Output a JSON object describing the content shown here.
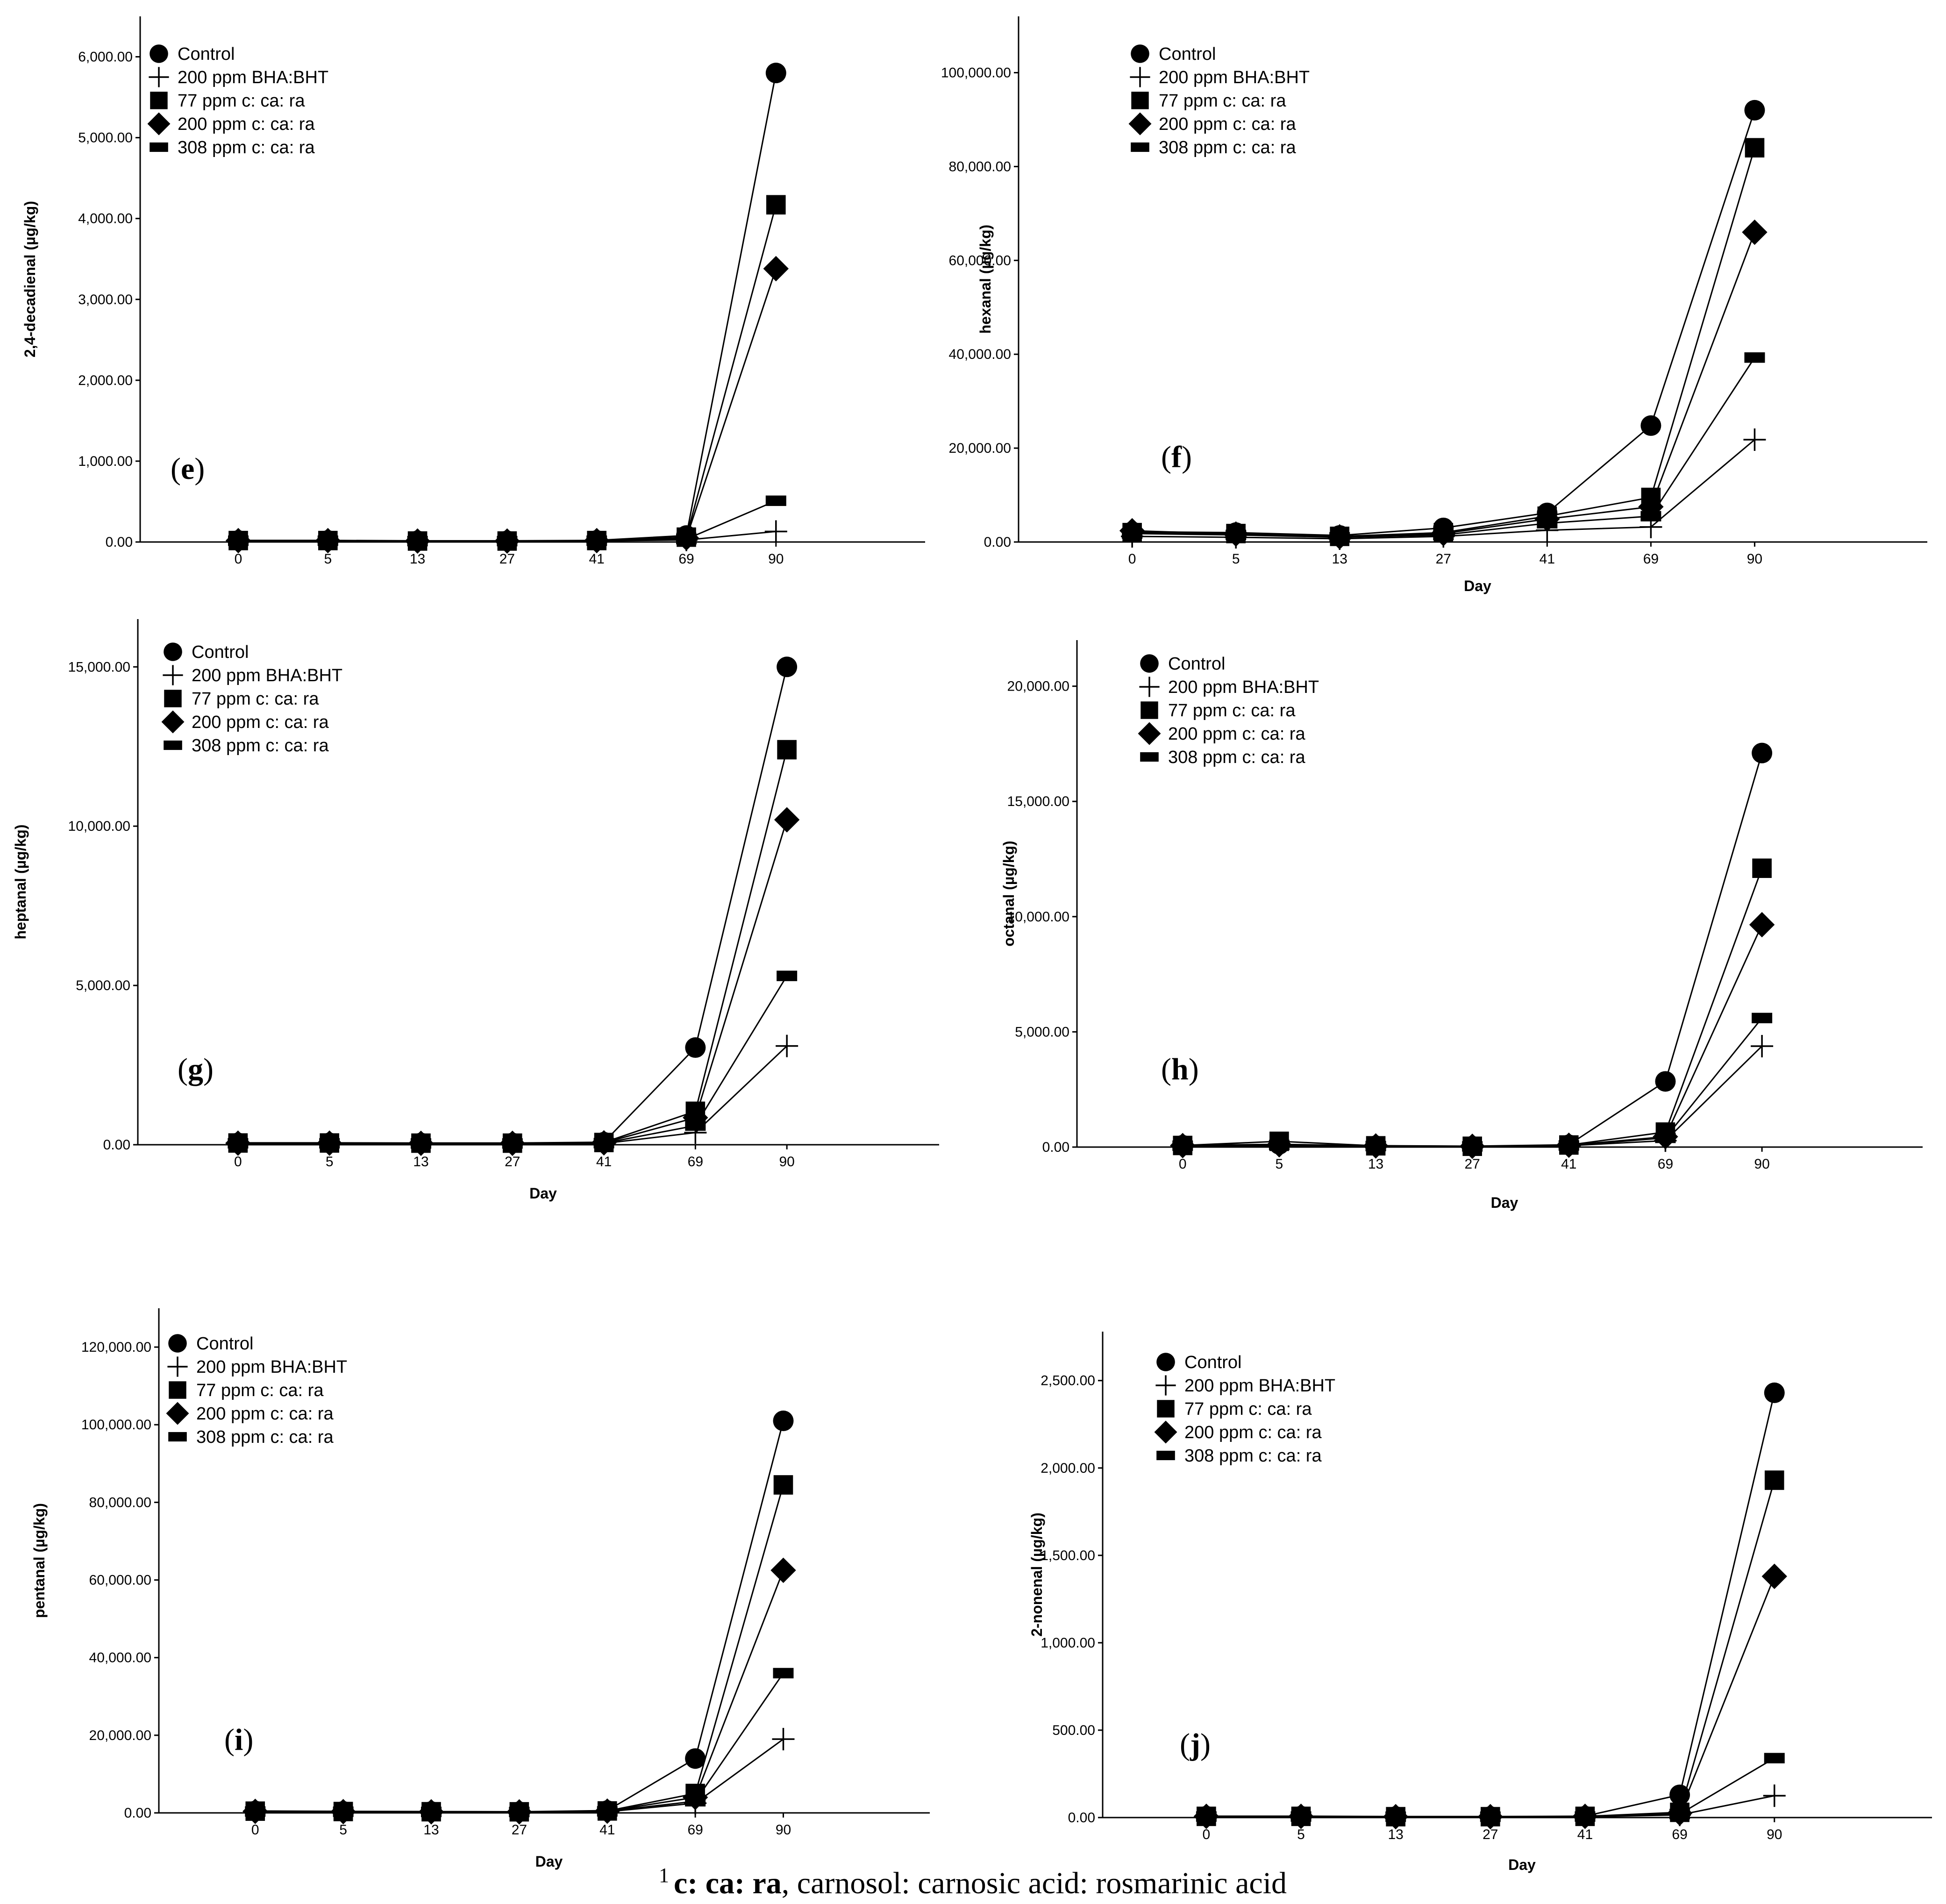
{
  "chart_data": [
    {
      "type": "line",
      "panel_label": "(e)",
      "ylabel": "2,4-decadienal (µg/kg)",
      "xlabel": "",
      "categories": [
        "0",
        "5",
        "13",
        "27",
        "41",
        "69",
        "90"
      ],
      "ylim": [
        0,
        6500
      ],
      "yticks": [
        0,
        1000,
        2000,
        3000,
        4000,
        5000,
        6000
      ],
      "ytick_labels": [
        "0.00",
        "1,000.00",
        "2,000.00",
        "3,000.00",
        "4,000.00",
        "5,000.00",
        "6,000.00"
      ],
      "series": [
        {
          "name": "Control",
          "values": [
            20,
            20,
            15,
            15,
            20,
            80,
            5800
          ]
        },
        {
          "name": "200 ppm BHA:BHT",
          "values": [
            15,
            15,
            10,
            10,
            15,
            25,
            130
          ]
        },
        {
          "name": "77 ppm c: ca: ra",
          "values": [
            18,
            18,
            12,
            12,
            18,
            60,
            4170
          ]
        },
        {
          "name": "200 ppm c: ca: ra",
          "values": [
            17,
            17,
            12,
            12,
            17,
            50,
            3380
          ]
        },
        {
          "name": "308 ppm c: ca: ra",
          "values": [
            16,
            16,
            11,
            11,
            16,
            35,
            510
          ]
        }
      ]
    },
    {
      "type": "line",
      "panel_label": "(f)",
      "ylabel": "hexanal (µg/kg)",
      "xlabel": "Day",
      "categories": [
        "0",
        "5",
        "13",
        "27",
        "41",
        "69",
        "90"
      ],
      "ylim": [
        0,
        112000
      ],
      "yticks": [
        0,
        20000,
        40000,
        60000,
        80000,
        100000
      ],
      "ytick_labels": [
        "0.00",
        "20,000.00",
        "40,000.00",
        "60,000.00",
        "80,000.00",
        "100,000.00"
      ],
      "series": [
        {
          "name": "Control",
          "values": [
            2200,
            2000,
            1400,
            3000,
            6200,
            24800,
            92000
          ]
        },
        {
          "name": "200 ppm BHA:BHT",
          "values": [
            1200,
            1000,
            700,
            1200,
            2500,
            3200,
            21800
          ]
        },
        {
          "name": "77 ppm c: ca: ra",
          "values": [
            2000,
            1800,
            1200,
            2000,
            5500,
            9500,
            84000
          ]
        },
        {
          "name": "200 ppm c: ca: ra",
          "values": [
            2400,
            1700,
            1100,
            1800,
            4900,
            7500,
            66000
          ]
        },
        {
          "name": "308 ppm c: ca: ra",
          "values": [
            1800,
            1500,
            1000,
            1500,
            4000,
            5500,
            39300
          ]
        }
      ]
    },
    {
      "type": "line",
      "panel_label": "(g)",
      "ylabel": "heptanal (µg/kg)",
      "xlabel": "Day",
      "categories": [
        "0",
        "5",
        "13",
        "27",
        "41",
        "69",
        "90"
      ],
      "ylim": [
        0,
        16500
      ],
      "yticks": [
        0,
        5000,
        10000,
        15000
      ],
      "ytick_labels": [
        "0.00",
        "5,000.00",
        "10,000.00",
        "15,000.00"
      ],
      "series": [
        {
          "name": "Control",
          "values": [
            60,
            60,
            55,
            55,
            80,
            3050,
            15000
          ]
        },
        {
          "name": "200 ppm BHA:BHT",
          "values": [
            40,
            40,
            35,
            35,
            40,
            380,
            3100
          ]
        },
        {
          "name": "77 ppm c: ca: ra",
          "values": [
            55,
            55,
            50,
            50,
            70,
            1050,
            12400
          ]
        },
        {
          "name": "200 ppm c: ca: ra",
          "values": [
            50,
            50,
            45,
            45,
            60,
            850,
            10200
          ]
        },
        {
          "name": "308 ppm c: ca: ra",
          "values": [
            45,
            45,
            40,
            40,
            50,
            600,
            5300
          ]
        }
      ]
    },
    {
      "type": "line",
      "panel_label": "(h)",
      "ylabel": "octanal (µg/kg)",
      "xlabel": "Day",
      "categories": [
        "0",
        "5",
        "13",
        "27",
        "41",
        "69",
        "90"
      ],
      "ylim": [
        0,
        22000
      ],
      "yticks": [
        0,
        5000,
        10000,
        15000,
        20000
      ],
      "ytick_labels": [
        "0.00",
        "5,000.00",
        "10,000.00",
        "15,000.00",
        "20,000.00"
      ],
      "series": [
        {
          "name": "Control",
          "values": [
            80,
            120,
            60,
            40,
            100,
            2850,
            17100
          ]
        },
        {
          "name": "200 ppm BHA:BHT",
          "values": [
            50,
            60,
            40,
            30,
            60,
            280,
            4380
          ]
        },
        {
          "name": "77 ppm c: ca: ra",
          "values": [
            70,
            250,
            55,
            35,
            90,
            650,
            12100
          ]
        },
        {
          "name": "200 ppm c: ca: ra",
          "values": [
            65,
            100,
            50,
            35,
            80,
            450,
            9650
          ]
        },
        {
          "name": "308 ppm c: ca: ra",
          "values": [
            60,
            90,
            45,
            30,
            70,
            400,
            5600
          ]
        }
      ]
    },
    {
      "type": "line",
      "panel_label": "(i)",
      "ylabel": "pentanal (µg/kg)",
      "xlabel": "Day",
      "categories": [
        "0",
        "5",
        "13",
        "27",
        "41",
        "69",
        "90"
      ],
      "ylim": [
        0,
        130000
      ],
      "yticks": [
        0,
        20000,
        40000,
        60000,
        80000,
        100000,
        120000
      ],
      "ytick_labels": [
        "0.00",
        "20,000.00",
        "40,000.00",
        "60,000.00",
        "80,000.00",
        "100,000.00",
        "120,000.00"
      ],
      "series": [
        {
          "name": "Control",
          "values": [
            500,
            400,
            350,
            300,
            600,
            14000,
            101000
          ]
        },
        {
          "name": "200 ppm BHA:BHT",
          "values": [
            300,
            250,
            200,
            200,
            300,
            2500,
            19000
          ]
        },
        {
          "name": "77 ppm c: ca: ra",
          "values": [
            450,
            350,
            300,
            280,
            500,
            5000,
            84500
          ]
        },
        {
          "name": "200 ppm c: ca: ra",
          "values": [
            400,
            320,
            280,
            260,
            450,
            4000,
            62500
          ]
        },
        {
          "name": "308 ppm c: ca: ra",
          "values": [
            350,
            300,
            250,
            240,
            400,
            3000,
            36000
          ]
        }
      ]
    },
    {
      "type": "line",
      "panel_label": "(j)",
      "ylabel": "2-nonenal (µg/kg)",
      "xlabel": "Day",
      "categories": [
        "0",
        "5",
        "13",
        "27",
        "41",
        "69",
        "90"
      ],
      "ylim": [
        0,
        2780
      ],
      "yticks": [
        0,
        500,
        1000,
        1500,
        2000,
        2500
      ],
      "ytick_labels": [
        "0.00",
        "500.00",
        "1,000.00",
        "1,500.00",
        "2,000.00",
        "2,500.00"
      ],
      "series": [
        {
          "name": "Control",
          "values": [
            8,
            8,
            6,
            6,
            8,
            130,
            2430
          ]
        },
        {
          "name": "200 ppm BHA:BHT",
          "values": [
            5,
            5,
            4,
            4,
            5,
            15,
            125
          ]
        },
        {
          "name": "77 ppm c: ca: ra",
          "values": [
            7,
            7,
            5,
            5,
            7,
            30,
            1930
          ]
        },
        {
          "name": "200 ppm c: ca: ra",
          "values": [
            7,
            7,
            5,
            5,
            7,
            25,
            1380
          ]
        },
        {
          "name": "308 ppm c: ca: ra",
          "values": [
            6,
            6,
            5,
            5,
            6,
            20,
            340
          ]
        }
      ]
    }
  ],
  "legend": {
    "markers": [
      "circle",
      "plus",
      "square",
      "diamond",
      "bar"
    ]
  },
  "footnote": {
    "sup": "1",
    "abbr": "c: ca: ra",
    "text": ", carnosol: carnosic acid: rosmarinic acid"
  }
}
